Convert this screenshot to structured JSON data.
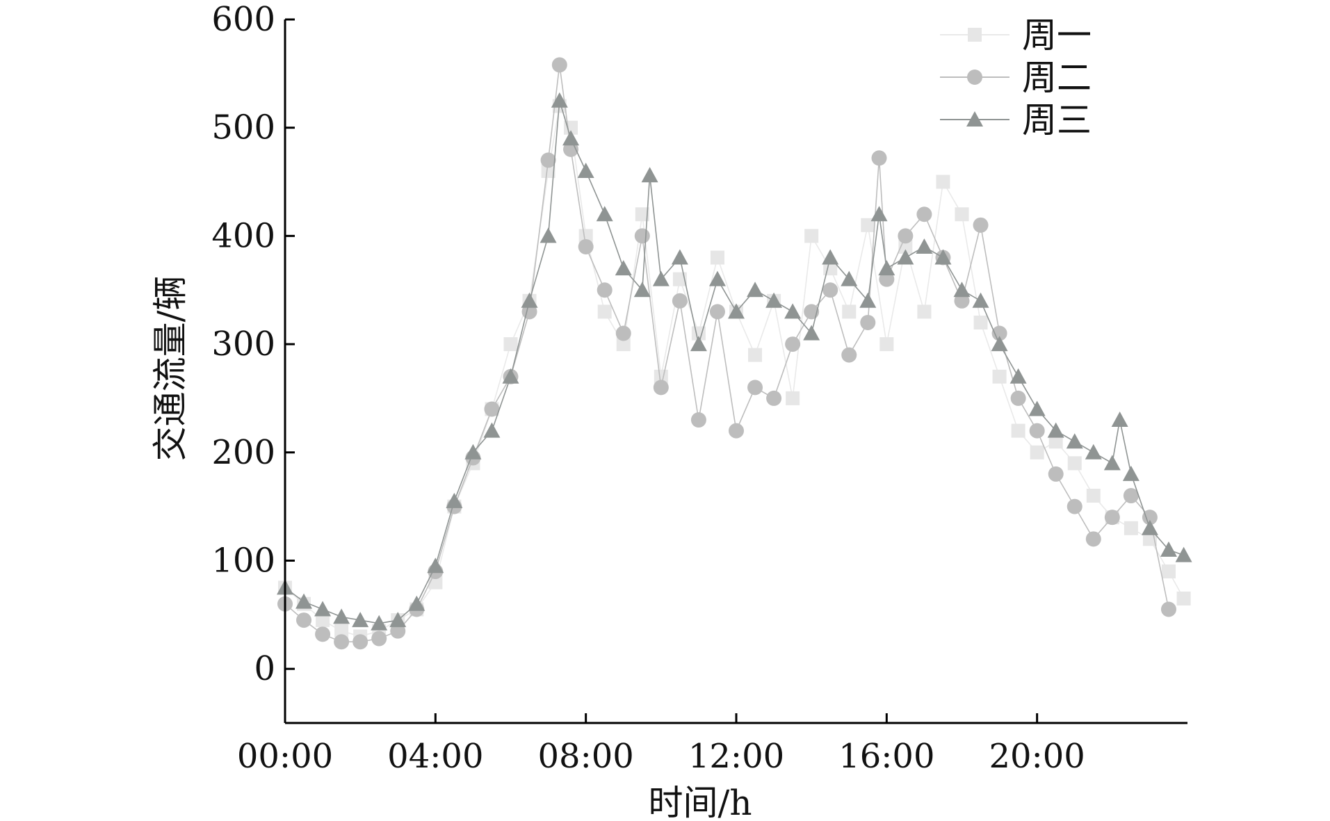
{
  "chart_data": {
    "type": "line",
    "title": "",
    "xlabel": "时间/h",
    "ylabel": "交通流量/辆",
    "x_unit": "hour",
    "xlim": [
      0,
      24
    ],
    "ylim": [
      -50,
      600
    ],
    "x_ticks": [
      0,
      4,
      8,
      12,
      16,
      20
    ],
    "x_tick_labels": [
      "00:00",
      "04:00",
      "08:00",
      "12:00",
      "16:00",
      "20:00"
    ],
    "y_ticks": [
      0,
      100,
      200,
      300,
      400,
      500,
      600
    ],
    "y_tick_labels": [
      "0",
      "100",
      "200",
      "300",
      "400",
      "500",
      "600"
    ],
    "grid": false,
    "legend_position": "top-right",
    "series": [
      {
        "name": "周一",
        "marker": "square",
        "color": "#e6e6e6",
        "line_color": "#e9e9e9",
        "x": [
          0,
          0.5,
          1,
          1.5,
          2,
          2.5,
          3,
          3.5,
          4,
          4.5,
          5,
          5.5,
          6,
          6.5,
          7,
          7.3,
          7.6,
          8,
          8.5,
          9,
          9.5,
          10,
          10.5,
          11,
          11.5,
          12,
          12.5,
          13,
          13.5,
          14,
          14.5,
          15,
          15.5,
          16,
          16.5,
          17,
          17.5,
          18,
          18.5,
          19,
          19.5,
          20,
          20.5,
          21,
          21.5,
          22,
          22.5,
          23,
          23.5,
          23.9
        ],
        "values": [
          75,
          60,
          45,
          35,
          30,
          35,
          45,
          55,
          80,
          150,
          190,
          240,
          300,
          340,
          460,
          520,
          500,
          400,
          330,
          300,
          420,
          270,
          360,
          310,
          380,
          330,
          290,
          340,
          250,
          400,
          370,
          330,
          410,
          300,
          390,
          330,
          450,
          420,
          320,
          270,
          220,
          200,
          210,
          190,
          160,
          140,
          130,
          120,
          90,
          65
        ]
      },
      {
        "name": "周二",
        "marker": "circle",
        "color": "#bdbdbd",
        "line_color": "#bdbdbd",
        "x": [
          0,
          0.5,
          1,
          1.5,
          2,
          2.5,
          3,
          3.5,
          4,
          4.5,
          5,
          5.5,
          6,
          6.5,
          7,
          7.3,
          7.6,
          8,
          8.5,
          9,
          9.5,
          10,
          10.5,
          11,
          11.5,
          12,
          12.5,
          13,
          13.5,
          14,
          14.5,
          15,
          15.5,
          15.8,
          16,
          16.5,
          17,
          17.5,
          18,
          18.5,
          19,
          19.5,
          20,
          20.5,
          21,
          21.5,
          22,
          22.5,
          23,
          23.5
        ],
        "values": [
          60,
          45,
          32,
          25,
          25,
          28,
          35,
          55,
          90,
          150,
          195,
          240,
          270,
          330,
          470,
          558,
          480,
          390,
          350,
          310,
          400,
          260,
          340,
          230,
          330,
          220,
          260,
          250,
          300,
          330,
          350,
          290,
          320,
          472,
          360,
          400,
          420,
          380,
          340,
          410,
          310,
          250,
          220,
          180,
          150,
          120,
          140,
          160,
          140,
          55
        ]
      },
      {
        "name": "周三",
        "marker": "triangle",
        "color": "#8f9493",
        "line_color": "#8f9493",
        "x": [
          0,
          0.5,
          1,
          1.5,
          2,
          2.5,
          3,
          3.5,
          4,
          4.5,
          5,
          5.5,
          6,
          6.5,
          7,
          7.3,
          7.6,
          8,
          8.5,
          9,
          9.5,
          9.7,
          10,
          10.5,
          11,
          11.5,
          12,
          12.5,
          13,
          13.5,
          14,
          14.5,
          15,
          15.5,
          15.8,
          16,
          16.5,
          17,
          17.5,
          18,
          18.5,
          19,
          19.5,
          20,
          20.5,
          21,
          21.5,
          22,
          22.2,
          22.5,
          23,
          23.5,
          23.9
        ],
        "values": [
          75,
          62,
          55,
          48,
          45,
          42,
          45,
          60,
          95,
          155,
          200,
          220,
          270,
          340,
          400,
          525,
          490,
          460,
          420,
          370,
          350,
          456,
          360,
          380,
          300,
          360,
          330,
          350,
          340,
          330,
          310,
          380,
          360,
          340,
          420,
          370,
          380,
          390,
          380,
          350,
          340,
          300,
          270,
          240,
          220,
          210,
          200,
          190,
          230,
          180,
          130,
          110,
          105
        ]
      }
    ]
  }
}
